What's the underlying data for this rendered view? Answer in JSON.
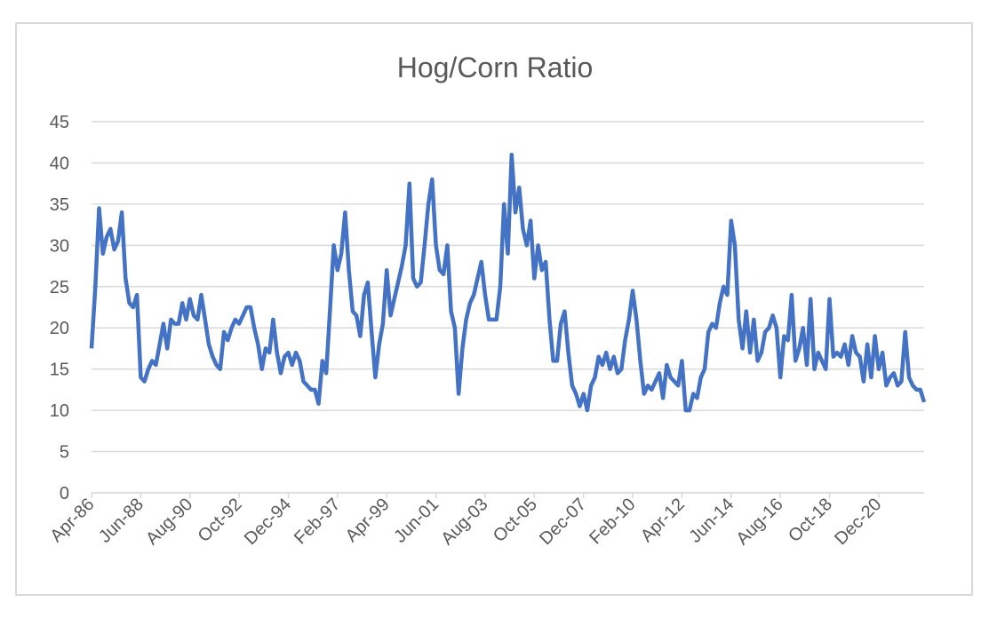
{
  "chart_data": {
    "type": "line",
    "title": "Hog/Corn Ratio",
    "categories": [
      "Apr-86",
      null,
      null,
      null,
      null,
      null,
      null,
      null,
      null,
      null,
      null,
      null,
      null,
      "Jun-88",
      null,
      null,
      null,
      null,
      null,
      null,
      null,
      null,
      null,
      null,
      null,
      null,
      "Aug-90",
      null,
      null,
      null,
      null,
      null,
      null,
      null,
      null,
      null,
      null,
      null,
      null,
      "Oct-92",
      null,
      null,
      null,
      null,
      null,
      null,
      null,
      null,
      null,
      null,
      null,
      null,
      "Dec-94",
      null,
      null,
      null,
      null,
      null,
      null,
      null,
      null,
      null,
      null,
      null,
      null,
      "Feb-97",
      null,
      null,
      null,
      null,
      null,
      null,
      null,
      null,
      null,
      null,
      null,
      null,
      "Apr-99",
      null,
      null,
      null,
      null,
      null,
      null,
      null,
      null,
      null,
      null,
      null,
      null,
      "Jun-01",
      null,
      null,
      null,
      null,
      null,
      null,
      null,
      null,
      null,
      null,
      null,
      null,
      "Aug-03",
      null,
      null,
      null,
      null,
      null,
      null,
      null,
      null,
      null,
      null,
      null,
      null,
      "Oct-05",
      null,
      null,
      null,
      null,
      null,
      null,
      null,
      null,
      null,
      null,
      null,
      null,
      "Dec-07",
      null,
      null,
      null,
      null,
      null,
      null,
      null,
      null,
      null,
      null,
      null,
      null,
      "Feb-10",
      null,
      null,
      null,
      null,
      null,
      null,
      null,
      null,
      null,
      null,
      null,
      null,
      "Apr-12",
      null,
      null,
      null,
      null,
      null,
      null,
      null,
      null,
      null,
      null,
      null,
      null,
      "Jun-14",
      null,
      null,
      null,
      null,
      null,
      null,
      null,
      null,
      null,
      null,
      null,
      null,
      "Aug-16",
      null,
      null,
      null,
      null,
      null,
      null,
      null,
      null,
      null,
      null,
      null,
      null,
      "Oct-18",
      null,
      null,
      null,
      null,
      null,
      null,
      null,
      null,
      null,
      null,
      null,
      null,
      "Dec-20",
      null,
      null,
      null,
      null,
      null,
      null,
      null,
      null,
      null,
      null,
      null,
      null
    ],
    "series": [
      {
        "name": "Hog/Corn Ratio",
        "color": "#4472c4",
        "values": [
          17.5,
          25,
          34.5,
          29,
          31,
          32,
          29.5,
          30.5,
          34,
          26,
          23,
          22.5,
          24,
          14,
          13.5,
          15,
          16,
          15.5,
          18,
          20.5,
          17.5,
          21,
          20.5,
          20.5,
          23,
          21,
          23.5,
          21.5,
          21,
          24,
          21,
          18,
          16.5,
          15.5,
          15,
          19.5,
          18.5,
          20,
          21,
          20.5,
          21.5,
          22.5,
          22.5,
          20,
          18,
          15,
          17.5,
          17,
          21,
          17,
          14.5,
          16.5,
          17,
          15.5,
          17,
          16,
          13.5,
          13,
          12.5,
          12.5,
          10.8,
          16,
          14.5,
          22,
          30,
          27,
          29,
          34,
          27,
          22,
          21.5,
          19,
          24,
          25.5,
          19.5,
          14,
          18,
          20.5,
          27,
          21.5,
          23.5,
          25.5,
          27.5,
          30,
          37.5,
          26,
          25,
          25.5,
          30,
          35,
          38,
          30,
          27,
          26.5,
          30,
          22,
          20,
          12,
          17.5,
          21,
          23,
          24,
          26,
          28,
          24,
          21,
          21,
          21,
          25,
          35,
          29,
          41,
          34,
          37,
          32,
          30,
          33,
          26,
          30,
          27,
          28,
          21,
          16,
          16,
          20.5,
          22,
          17,
          13,
          12,
          10.5,
          12,
          10,
          13,
          14,
          16.5,
          15.5,
          17,
          15,
          16.5,
          14.5,
          15,
          18.5,
          21,
          24.5,
          21,
          16,
          12,
          13,
          12.5,
          13.5,
          14.5,
          11.5,
          15.5,
          14,
          13.5,
          13,
          16,
          10,
          10,
          12,
          11.5,
          14,
          15,
          19.5,
          20.5,
          20,
          23,
          25,
          24,
          33,
          30,
          21,
          17.5,
          22,
          17,
          21,
          16,
          17,
          19.5,
          20,
          21.5,
          20,
          14,
          19,
          18.5,
          24,
          16,
          17.5,
          20,
          15.5,
          23.5,
          15,
          17,
          16,
          15,
          23.5,
          16.5,
          17,
          16.5,
          18,
          15.5,
          19,
          17,
          16.5,
          13.5,
          18,
          14,
          19,
          15,
          17,
          13,
          14,
          14.5,
          13,
          13.5,
          19.5,
          14,
          13,
          12.5,
          12.5,
          11
        ]
      }
    ],
    "ylim": [
      0,
      45
    ],
    "yticks": [
      0,
      5,
      10,
      15,
      20,
      25,
      30,
      35,
      40,
      45
    ],
    "grid": true
  }
}
